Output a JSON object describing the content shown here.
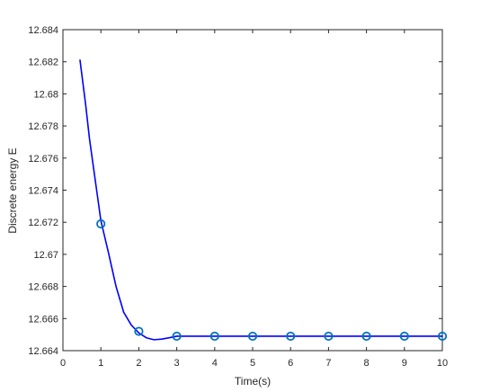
{
  "chart_data": {
    "type": "line",
    "title": "",
    "xlabel": "Time(s)",
    "ylabel": "Discrete energy E",
    "xlim": [
      0,
      10
    ],
    "ylim": [
      12.664,
      12.684
    ],
    "x_ticks": [
      0,
      1,
      2,
      3,
      4,
      5,
      6,
      7,
      8,
      9,
      10
    ],
    "x_tick_labels": [
      "0",
      "1",
      "2",
      "3",
      "4",
      "5",
      "6",
      "7",
      "8",
      "9",
      "10"
    ],
    "y_ticks": [
      12.664,
      12.666,
      12.668,
      12.67,
      12.672,
      12.674,
      12.676,
      12.678,
      12.68,
      12.682,
      12.684
    ],
    "y_tick_labels": [
      "12.664",
      "12.666",
      "12.668",
      "12.67",
      "12.672",
      "12.674",
      "12.676",
      "12.678",
      "12.68",
      "12.682",
      "12.684"
    ],
    "grid": false,
    "series": [
      {
        "style": "solid line",
        "color": "#0000ff",
        "x": [
          0.45,
          0.6,
          0.7,
          0.8,
          0.9,
          1.0,
          1.2,
          1.4,
          1.6,
          1.8,
          2.0,
          2.2,
          2.4,
          2.6,
          2.8,
          3.0,
          3.5,
          4.0,
          5.0,
          6.0,
          7.0,
          8.0,
          9.0,
          10.0
        ],
        "y": [
          12.6821,
          12.6793,
          12.6772,
          12.6755,
          12.6738,
          12.6721,
          12.6701,
          12.668,
          12.6664,
          12.6656,
          12.6651,
          12.6648,
          12.66468,
          12.66472,
          12.6648,
          12.6649,
          12.6649,
          12.6649,
          12.6649,
          12.6649,
          12.6649,
          12.6649,
          12.6649,
          12.6649
        ]
      },
      {
        "style": "circle markers",
        "color": "#0072bd",
        "x": [
          1,
          2,
          3,
          4,
          5,
          6,
          7,
          8,
          9,
          10
        ],
        "y": [
          12.6719,
          12.6652,
          12.6649,
          12.6649,
          12.6649,
          12.6649,
          12.6649,
          12.6649,
          12.6649,
          12.6649
        ]
      }
    ]
  }
}
